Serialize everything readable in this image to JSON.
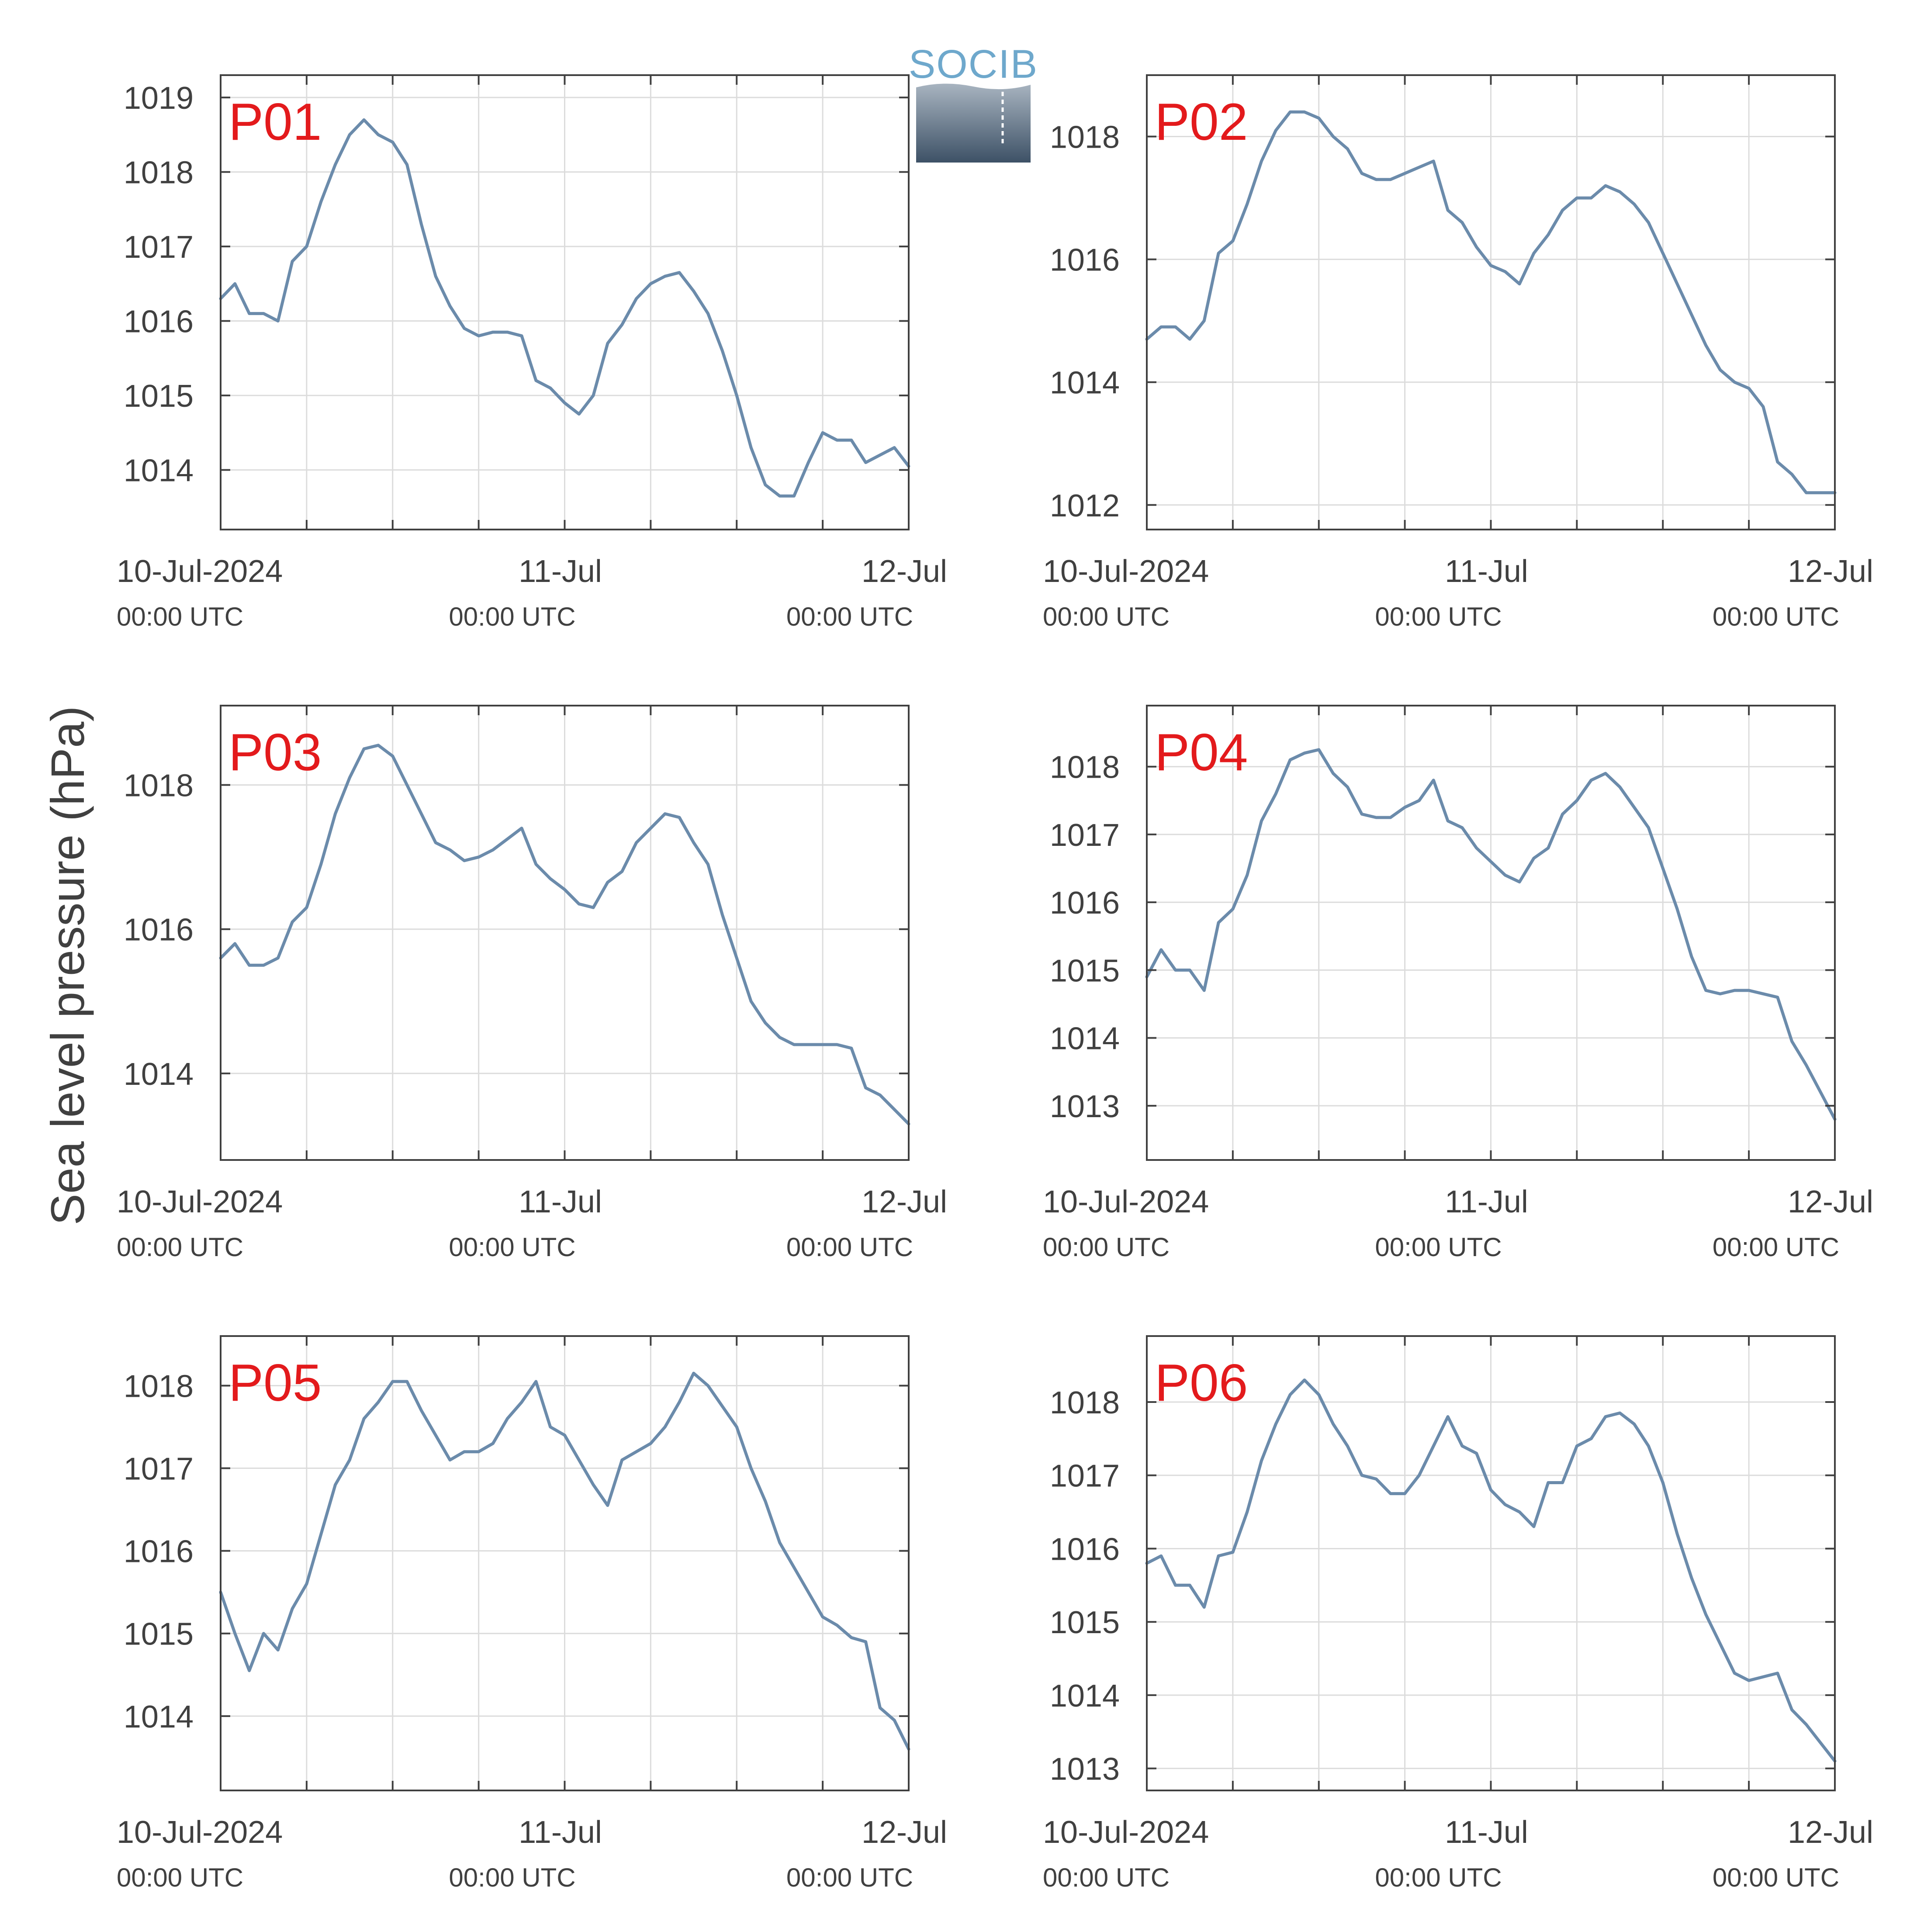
{
  "figure": {
    "ylabel": "Sea level pressure (hPa)",
    "logo_text": "SOCIB",
    "line_color": "#6b8bab",
    "label_color": "#e31a1c",
    "grid_color": "#dcdcdc",
    "axis_color": "#404040"
  },
  "chart_data": [
    {
      "type": "line",
      "panel": "P01",
      "ylim": [
        1013.2,
        1019.3
      ],
      "yticks": [
        1014,
        1015,
        1016,
        1017,
        1018,
        1019
      ],
      "x_tick_labels": [
        {
          "date": "10-Jul-2024",
          "time": "00:00 UTC"
        },
        {
          "date": "11-Jul",
          "time": "00:00 UTC"
        },
        {
          "date": "12-Jul",
          "time": "00:00 UTC"
        }
      ],
      "x_hours": [
        0,
        1,
        2,
        3,
        4,
        5,
        6,
        7,
        8,
        9,
        10,
        11,
        12,
        13,
        14,
        15,
        16,
        17,
        18,
        19,
        20,
        21,
        22,
        23,
        24,
        25,
        26,
        27,
        28,
        29,
        30,
        31,
        32,
        33,
        34,
        35,
        36,
        37,
        38,
        39,
        40,
        41,
        42,
        43,
        44,
        45,
        46,
        47,
        48
      ],
      "values": [
        1016.3,
        1016.5,
        1016.1,
        1016.1,
        1016.0,
        1016.8,
        1017.0,
        1017.6,
        1018.1,
        1018.5,
        1018.7,
        1018.5,
        1018.4,
        1018.1,
        1017.3,
        1016.6,
        1016.2,
        1015.9,
        1015.8,
        1015.85,
        1015.85,
        1015.8,
        1015.2,
        1015.1,
        1014.9,
        1014.75,
        1015.0,
        1015.7,
        1015.95,
        1016.3,
        1016.5,
        1016.6,
        1016.65,
        1016.4,
        1016.1,
        1015.6,
        1015.0,
        1014.3,
        1013.8,
        1013.65,
        1013.65,
        1014.1,
        1014.5,
        1014.4,
        1014.4,
        1014.1,
        1014.2,
        1014.3,
        1014.05
      ]
    },
    {
      "type": "line",
      "panel": "P02",
      "ylim": [
        1011.6,
        1019.0
      ],
      "yticks": [
        1012,
        1014,
        1016,
        1018
      ],
      "x_tick_labels": [
        {
          "date": "10-Jul-2024",
          "time": "00:00 UTC"
        },
        {
          "date": "11-Jul",
          "time": "00:00 UTC"
        },
        {
          "date": "12-Jul",
          "time": "00:00 UTC"
        }
      ],
      "x_hours": [
        0,
        1,
        2,
        3,
        4,
        5,
        6,
        7,
        8,
        9,
        10,
        11,
        12,
        13,
        14,
        15,
        16,
        17,
        18,
        19,
        20,
        21,
        22,
        23,
        24,
        25,
        26,
        27,
        28,
        29,
        30,
        31,
        32,
        33,
        34,
        35,
        36,
        37,
        38,
        39,
        40,
        41,
        42,
        43,
        44,
        45,
        46,
        47,
        48
      ],
      "values": [
        1014.7,
        1014.9,
        1014.9,
        1014.7,
        1015.0,
        1016.1,
        1016.3,
        1016.9,
        1017.6,
        1018.1,
        1018.4,
        1018.4,
        1018.3,
        1018.0,
        1017.8,
        1017.4,
        1017.3,
        1017.3,
        1017.4,
        1017.5,
        1017.6,
        1016.8,
        1016.6,
        1016.2,
        1015.9,
        1015.8,
        1015.6,
        1016.1,
        1016.4,
        1016.8,
        1017.0,
        1017.0,
        1017.2,
        1017.1,
        1016.9,
        1016.6,
        1016.1,
        1015.6,
        1015.1,
        1014.6,
        1014.2,
        1014.0,
        1013.9,
        1013.6,
        1012.7,
        1012.5,
        1012.2,
        1012.2,
        1012.2
      ]
    },
    {
      "type": "line",
      "panel": "P03",
      "ylim": [
        1012.8,
        1019.1
      ],
      "yticks": [
        1014,
        1016,
        1018
      ],
      "x_tick_labels": [
        {
          "date": "10-Jul-2024",
          "time": "00:00 UTC"
        },
        {
          "date": "11-Jul",
          "time": "00:00 UTC"
        },
        {
          "date": "12-Jul",
          "time": "00:00 UTC"
        }
      ],
      "x_hours": [
        0,
        1,
        2,
        3,
        4,
        5,
        6,
        7,
        8,
        9,
        10,
        11,
        12,
        13,
        14,
        15,
        16,
        17,
        18,
        19,
        20,
        21,
        22,
        23,
        24,
        25,
        26,
        27,
        28,
        29,
        30,
        31,
        32,
        33,
        34,
        35,
        36,
        37,
        38,
        39,
        40,
        41,
        42,
        43,
        44,
        45,
        46,
        47,
        48
      ],
      "values": [
        1015.6,
        1015.8,
        1015.5,
        1015.5,
        1015.6,
        1016.1,
        1016.3,
        1016.9,
        1017.6,
        1018.1,
        1018.5,
        1018.55,
        1018.4,
        1018.0,
        1017.6,
        1017.2,
        1017.1,
        1016.95,
        1017.0,
        1017.1,
        1017.25,
        1017.4,
        1016.9,
        1016.7,
        1016.55,
        1016.35,
        1016.3,
        1016.65,
        1016.8,
        1017.2,
        1017.4,
        1017.6,
        1017.55,
        1017.2,
        1016.9,
        1016.2,
        1015.6,
        1015.0,
        1014.7,
        1014.5,
        1014.4,
        1014.4,
        1014.4,
        1014.4,
        1014.35,
        1013.8,
        1013.7,
        1013.5,
        1013.3
      ]
    },
    {
      "type": "line",
      "panel": "P04",
      "ylim": [
        1012.2,
        1018.9
      ],
      "yticks": [
        1013,
        1014,
        1015,
        1016,
        1017,
        1018
      ],
      "x_tick_labels": [
        {
          "date": "10-Jul-2024",
          "time": "00:00 UTC"
        },
        {
          "date": "11-Jul",
          "time": "00:00 UTC"
        },
        {
          "date": "12-Jul",
          "time": "00:00 UTC"
        }
      ],
      "x_hours": [
        0,
        1,
        2,
        3,
        4,
        5,
        6,
        7,
        8,
        9,
        10,
        11,
        12,
        13,
        14,
        15,
        16,
        17,
        18,
        19,
        20,
        21,
        22,
        23,
        24,
        25,
        26,
        27,
        28,
        29,
        30,
        31,
        32,
        33,
        34,
        35,
        36,
        37,
        38,
        39,
        40,
        41,
        42,
        43,
        44,
        45,
        46,
        47,
        48
      ],
      "values": [
        1014.9,
        1015.3,
        1015.0,
        1015.0,
        1014.7,
        1015.7,
        1015.9,
        1016.4,
        1017.2,
        1017.6,
        1018.1,
        1018.2,
        1018.25,
        1017.9,
        1017.7,
        1017.3,
        1017.25,
        1017.25,
        1017.4,
        1017.5,
        1017.8,
        1017.2,
        1017.1,
        1016.8,
        1016.6,
        1016.4,
        1016.3,
        1016.65,
        1016.8,
        1017.3,
        1017.5,
        1017.8,
        1017.9,
        1017.7,
        1017.4,
        1017.1,
        1016.5,
        1015.9,
        1015.2,
        1014.7,
        1014.65,
        1014.7,
        1014.7,
        1014.65,
        1014.6,
        1013.95,
        1013.6,
        1013.2,
        1012.8
      ]
    },
    {
      "type": "line",
      "panel": "P05",
      "ylim": [
        1013.1,
        1018.6
      ],
      "yticks": [
        1014,
        1015,
        1016,
        1017,
        1018
      ],
      "x_tick_labels": [
        {
          "date": "10-Jul-2024",
          "time": "00:00 UTC"
        },
        {
          "date": "11-Jul",
          "time": "00:00 UTC"
        },
        {
          "date": "12-Jul",
          "time": "00:00 UTC"
        }
      ],
      "x_hours": [
        0,
        1,
        2,
        3,
        4,
        5,
        6,
        7,
        8,
        9,
        10,
        11,
        12,
        13,
        14,
        15,
        16,
        17,
        18,
        19,
        20,
        21,
        22,
        23,
        24,
        25,
        26,
        27,
        28,
        29,
        30,
        31,
        32,
        33,
        34,
        35,
        36,
        37,
        38,
        39,
        40,
        41,
        42,
        43,
        44,
        45,
        46,
        47,
        48
      ],
      "values": [
        1015.5,
        1015.0,
        1014.55,
        1015.0,
        1014.8,
        1015.3,
        1015.6,
        1016.2,
        1016.8,
        1017.1,
        1017.6,
        1017.8,
        1018.05,
        1018.05,
        1017.7,
        1017.4,
        1017.1,
        1017.2,
        1017.2,
        1017.3,
        1017.6,
        1017.8,
        1018.05,
        1017.5,
        1017.4,
        1017.1,
        1016.8,
        1016.55,
        1017.1,
        1017.2,
        1017.3,
        1017.5,
        1017.8,
        1018.15,
        1018.0,
        1017.75,
        1017.5,
        1017.0,
        1016.6,
        1016.1,
        1015.8,
        1015.5,
        1015.2,
        1015.1,
        1014.95,
        1014.9,
        1014.1,
        1013.95,
        1013.6
      ]
    },
    {
      "type": "line",
      "panel": "P06",
      "ylim": [
        1012.7,
        1018.9
      ],
      "yticks": [
        1013,
        1014,
        1015,
        1016,
        1017,
        1018
      ],
      "x_tick_labels": [
        {
          "date": "10-Jul-2024",
          "time": "00:00 UTC"
        },
        {
          "date": "11-Jul",
          "time": "00:00 UTC"
        },
        {
          "date": "12-Jul",
          "time": "00:00 UTC"
        }
      ],
      "x_hours": [
        0,
        1,
        2,
        3,
        4,
        5,
        6,
        7,
        8,
        9,
        10,
        11,
        12,
        13,
        14,
        15,
        16,
        17,
        18,
        19,
        20,
        21,
        22,
        23,
        24,
        25,
        26,
        27,
        28,
        29,
        30,
        31,
        32,
        33,
        34,
        35,
        36,
        37,
        38,
        39,
        40,
        41,
        42,
        43,
        44,
        45,
        46,
        47,
        48
      ],
      "values": [
        1015.8,
        1015.9,
        1015.5,
        1015.5,
        1015.2,
        1015.9,
        1015.95,
        1016.5,
        1017.2,
        1017.7,
        1018.1,
        1018.3,
        1018.1,
        1017.7,
        1017.4,
        1017.0,
        1016.95,
        1016.75,
        1016.75,
        1017.0,
        1017.4,
        1017.8,
        1017.4,
        1017.3,
        1016.8,
        1016.6,
        1016.5,
        1016.3,
        1016.9,
        1016.9,
        1017.4,
        1017.5,
        1017.8,
        1017.85,
        1017.7,
        1017.4,
        1016.9,
        1016.2,
        1015.6,
        1015.1,
        1014.7,
        1014.3,
        1014.2,
        1014.25,
        1014.3,
        1013.8,
        1013.6,
        1013.35,
        1013.1
      ]
    }
  ]
}
